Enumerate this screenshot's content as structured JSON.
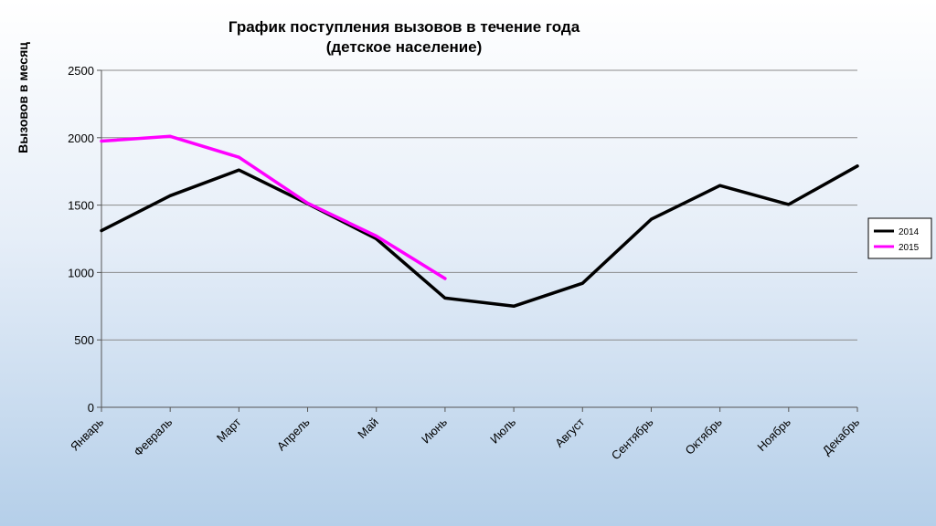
{
  "chart_data": {
    "type": "line",
    "title": [
      "График поступления вызовов в течение года",
      "(детское население)"
    ],
    "ylabel": "Вызовов в месяц",
    "xlabel": "",
    "categories": [
      "Январь",
      "Февраль",
      "Март",
      "Апрель",
      "Май",
      "Июнь",
      "Июль",
      "Август",
      "Сентябрь",
      "Октябрь",
      "Ноябрь",
      "Декабрь"
    ],
    "ylim": [
      0,
      2500
    ],
    "yticks": [
      0,
      500,
      1000,
      1500,
      2000,
      2500
    ],
    "grid": true,
    "legend_position": "right",
    "series": [
      {
        "name": "2014",
        "color": "#000000",
        "values": [
          1310,
          1570,
          1760,
          1510,
          1250,
          810,
          750,
          920,
          1395,
          1645,
          1505,
          1790
        ]
      },
      {
        "name": "2015",
        "color": "#ff00ff",
        "values": [
          1975,
          2010,
          1855,
          1515,
          1270,
          955,
          null,
          null,
          null,
          null,
          null,
          null
        ]
      }
    ]
  }
}
